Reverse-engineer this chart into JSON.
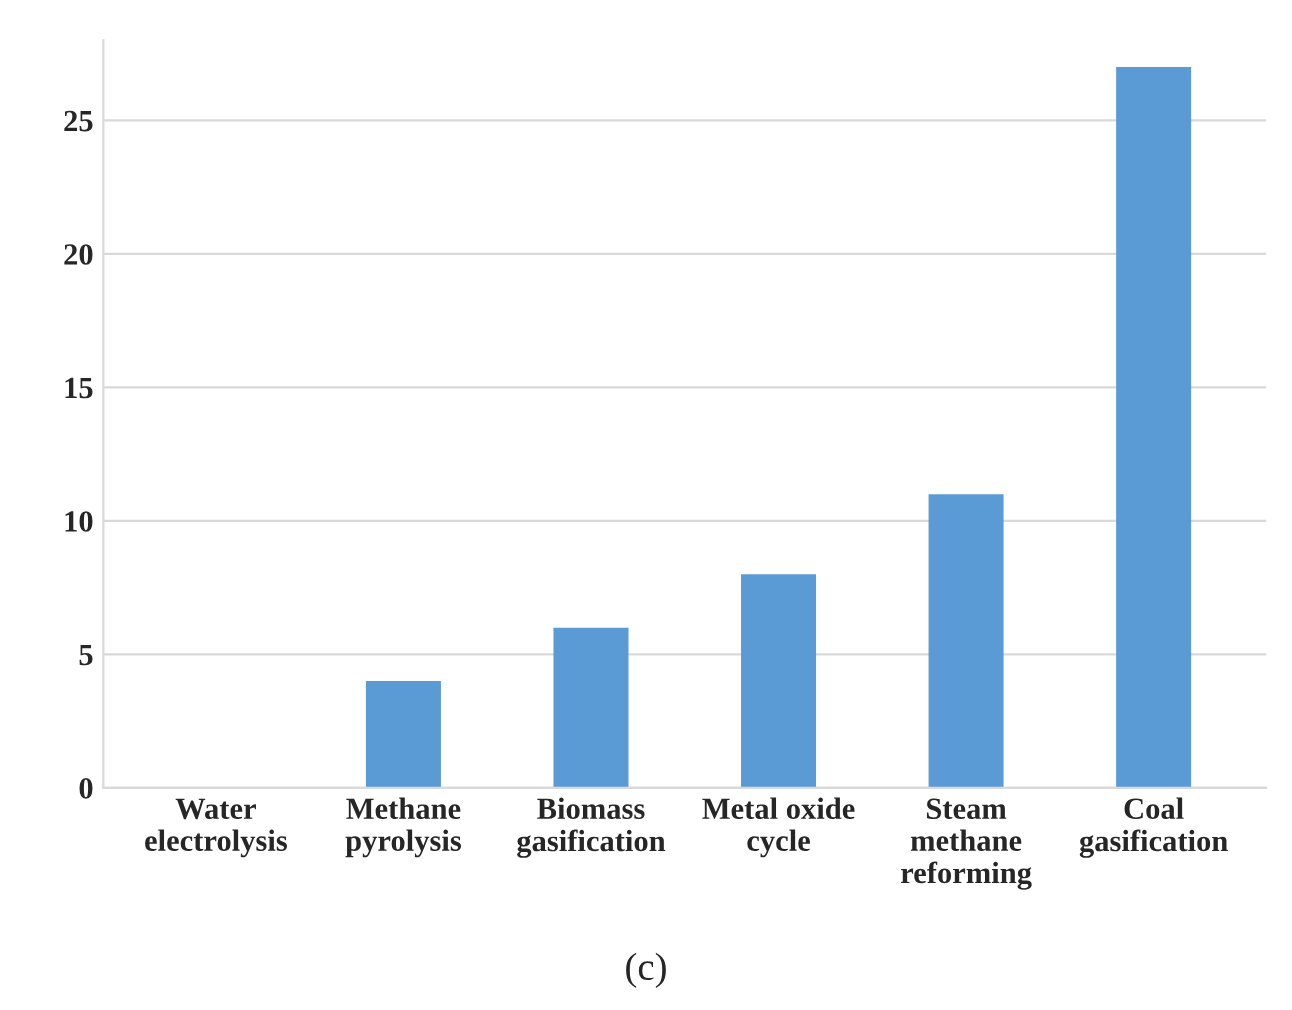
{
  "chart_data": {
    "type": "bar",
    "categories": [
      "Water\nelectrolysis",
      "Methane\npyrolysis",
      "Biomass\ngasification",
      "Metal oxide\ncycle",
      "Steam\nmethane\nreforming",
      "Coal\ngasification"
    ],
    "values": [
      0,
      4,
      6,
      8,
      11,
      27
    ],
    "color": "#5b9bd5",
    "ylim": [
      0,
      28
    ],
    "yticks": [
      0,
      5,
      10,
      15,
      20,
      25
    ],
    "grid": "y",
    "annotations": [
      "(c)"
    ]
  }
}
